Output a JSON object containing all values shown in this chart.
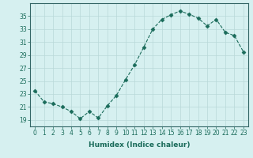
{
  "x": [
    0,
    1,
    2,
    3,
    4,
    5,
    6,
    7,
    8,
    9,
    10,
    11,
    12,
    13,
    14,
    15,
    16,
    17,
    18,
    19,
    20,
    21,
    22,
    23
  ],
  "y": [
    23.5,
    21.8,
    21.5,
    21.0,
    20.3,
    19.2,
    20.3,
    19.3,
    21.2,
    22.8,
    25.2,
    27.5,
    30.2,
    33.0,
    34.5,
    35.2,
    35.8,
    35.3,
    34.7,
    33.5,
    34.5,
    32.5,
    32.0,
    29.5
  ],
  "line_color": "#1a6b5a",
  "marker": "D",
  "marker_size": 2.5,
  "bg_color": "#d6f0f0",
  "grid_color": "#b8d8d8",
  "xlabel": "Humidex (Indice chaleur)",
  "ylim": [
    18,
    37
  ],
  "xlim": [
    -0.5,
    23.5
  ],
  "yticks": [
    19,
    21,
    23,
    25,
    27,
    29,
    31,
    33,
    35
  ],
  "xticks": [
    0,
    1,
    2,
    3,
    4,
    5,
    6,
    7,
    8,
    9,
    10,
    11,
    12,
    13,
    14,
    15,
    16,
    17,
    18,
    19,
    20,
    21,
    22,
    23
  ],
  "xlabel_fontsize": 6.5,
  "tick_fontsize": 5.5,
  "spine_color": "#336666"
}
